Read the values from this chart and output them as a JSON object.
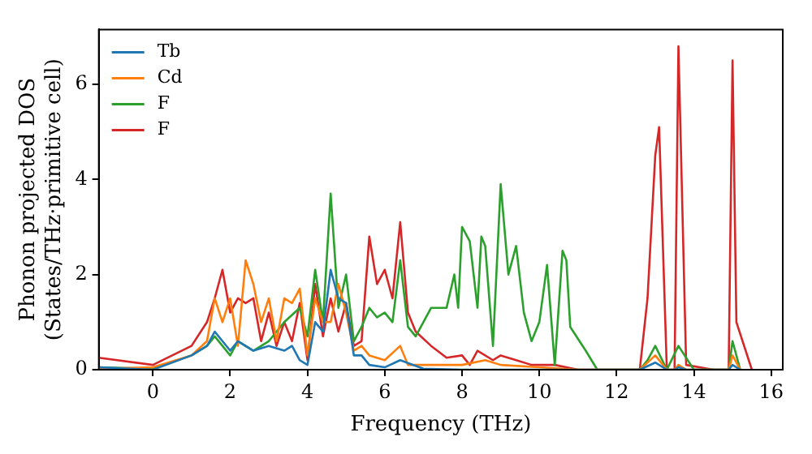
{
  "chart_data": {
    "type": "line",
    "xlabel": "Frequency (THz)",
    "ylabel": "Phonon projected DOS\n(States/THz·primitive cell)",
    "xlim": [
      -1.4,
      16.3
    ],
    "ylim": [
      0,
      7.15
    ],
    "xticks": [
      0,
      2,
      4,
      6,
      8,
      10,
      12,
      14,
      16
    ],
    "yticks": [
      0,
      2,
      4,
      6
    ],
    "legend": "top left",
    "grid": false,
    "series": [
      {
        "name": "Tb",
        "color": "#1f77b4",
        "x": [
          -1.4,
          0,
          1,
          1.4,
          1.6,
          2,
          2.2,
          2.6,
          3,
          3.4,
          3.6,
          3.8,
          4,
          4.2,
          4.4,
          4.6,
          4.8,
          5,
          5.2,
          5.4,
          5.6,
          6,
          6.4,
          7,
          8,
          12.6,
          13,
          13.3,
          13.5,
          13.6,
          13.8,
          14.9,
          15,
          15.2
        ],
        "values": [
          0.05,
          0,
          0.3,
          0.5,
          0.8,
          0.4,
          0.6,
          0.4,
          0.5,
          0.4,
          0.5,
          0.2,
          0.1,
          1,
          0.8,
          2.1,
          1.5,
          1.4,
          0.3,
          0.3,
          0.1,
          0.05,
          0.2,
          0.02,
          0,
          0,
          0.15,
          0,
          0,
          0.05,
          0,
          0,
          0.1,
          0
        ]
      },
      {
        "name": "Cd",
        "color": "#ff7f0e",
        "x": [
          -1.4,
          0,
          1,
          1.4,
          1.6,
          1.8,
          2,
          2.2,
          2.4,
          2.6,
          2.8,
          3,
          3.2,
          3.4,
          3.6,
          3.8,
          4,
          4.2,
          4.4,
          4.6,
          4.8,
          5,
          5.2,
          5.4,
          5.6,
          6,
          6.4,
          6.6,
          8,
          8.6,
          9,
          10,
          11,
          12.6,
          13,
          13.3,
          13.5,
          13.6,
          13.8,
          14.9,
          15,
          15.2
        ],
        "values": [
          0.02,
          0.05,
          0.3,
          0.6,
          1.5,
          1,
          1.5,
          0.5,
          2.3,
          1.8,
          1,
          1.5,
          0.6,
          1.5,
          1.4,
          1.7,
          0.3,
          1.5,
          1,
          1,
          1.8,
          1.2,
          0.4,
          0.5,
          0.3,
          0.2,
          0.5,
          0.1,
          0.1,
          0.2,
          0.1,
          0.05,
          0,
          0,
          0.3,
          0,
          0,
          0.1,
          0,
          0,
          0.3,
          0
        ]
      },
      {
        "name": "F",
        "color": "#2ca02c",
        "x": [
          -1.4,
          0,
          1,
          1.4,
          1.6,
          2,
          2.2,
          2.6,
          3,
          3.4,
          3.8,
          4,
          4.2,
          4.4,
          4.6,
          4.8,
          5,
          5.2,
          5.4,
          5.6,
          5.8,
          6,
          6.2,
          6.4,
          6.6,
          6.8,
          7,
          7.2,
          7.6,
          7.8,
          7.9,
          8,
          8.2,
          8.4,
          8.5,
          8.6,
          8.8,
          9,
          9.2,
          9.4,
          9.6,
          9.8,
          10,
          10.2,
          10.4,
          10.6,
          10.7,
          10.8,
          11.2,
          11.5,
          12.6,
          12.8,
          13,
          13.3,
          13.6,
          14,
          14.9,
          15,
          15.2
        ],
        "values": [
          0.05,
          0.02,
          0.3,
          0.5,
          0.7,
          0.3,
          0.6,
          0.4,
          0.6,
          1,
          1.3,
          0.7,
          2.1,
          1,
          3.7,
          1.3,
          2,
          0.6,
          0.9,
          1.3,
          1.1,
          1.2,
          1,
          2.3,
          0.9,
          0.7,
          1,
          1.3,
          1.3,
          2,
          1.3,
          3,
          2.7,
          1.3,
          2.8,
          2.6,
          0.5,
          3.9,
          2,
          2.6,
          1.2,
          0.6,
          1,
          2.2,
          0.1,
          2.5,
          2.3,
          0.9,
          0.4,
          0,
          0,
          0.2,
          0.5,
          0,
          0.5,
          0,
          0,
          0.6,
          0
        ]
      },
      {
        "name": "F",
        "color": "#d62728",
        "x": [
          -1.4,
          0,
          1,
          1.4,
          1.6,
          1.8,
          2,
          2.2,
          2.4,
          2.6,
          2.8,
          3,
          3.2,
          3.4,
          3.6,
          3.8,
          4,
          4.2,
          4.4,
          4.6,
          4.8,
          5,
          5.2,
          5.4,
          5.6,
          5.8,
          6,
          6.2,
          6.4,
          6.6,
          6.8,
          7.2,
          7.6,
          8,
          8.2,
          8.4,
          8.8,
          9,
          9.4,
          9.8,
          10.4,
          11,
          12.6,
          12.8,
          13,
          13.1,
          13.3,
          13.5,
          13.6,
          13.8,
          14.5,
          14.9,
          15,
          15.1,
          15.5
        ],
        "values": [
          0.25,
          0.1,
          0.5,
          1,
          1.5,
          2.1,
          1.2,
          1.5,
          1.4,
          1.5,
          0.6,
          1.2,
          0.5,
          1,
          0.6,
          1.4,
          0.2,
          1.8,
          0.7,
          1.5,
          0.8,
          1.4,
          0.5,
          0.6,
          2.8,
          1.8,
          2.1,
          1.5,
          3.1,
          1.2,
          0.8,
          0.5,
          0.25,
          0.3,
          0.1,
          0.4,
          0.2,
          0.3,
          0.2,
          0.1,
          0.1,
          0,
          0,
          1.5,
          4.5,
          5.1,
          0,
          0,
          6.8,
          0.1,
          0,
          0,
          6.5,
          1,
          0
        ]
      }
    ]
  }
}
